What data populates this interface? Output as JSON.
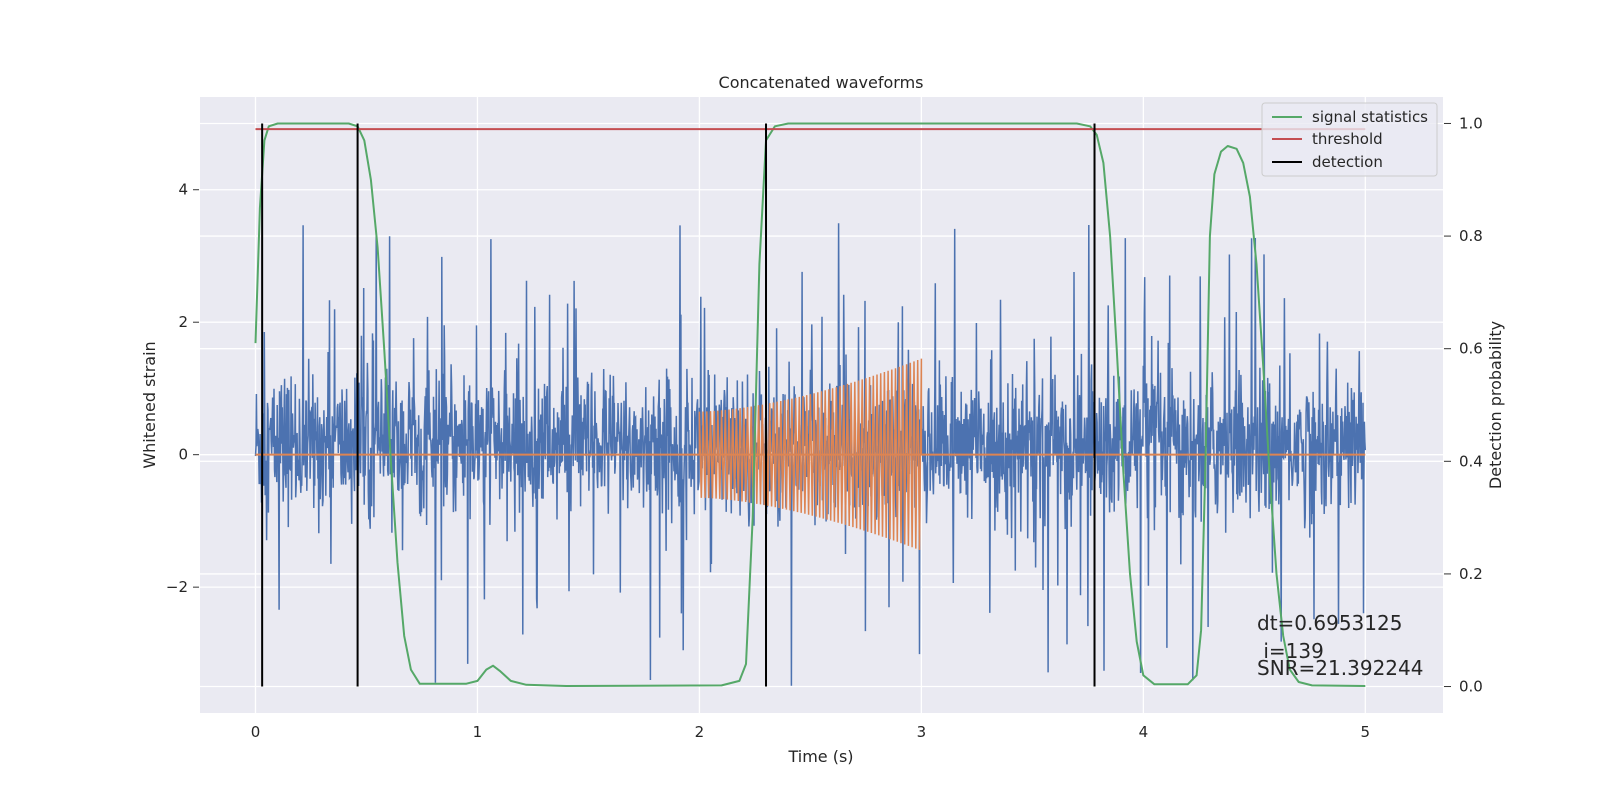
{
  "chart_data": {
    "type": "line",
    "title": "Concatenated waveforms",
    "xlabel": "Time (s)",
    "ylabel": "Whitened strain",
    "ylabel_right": "Detection probability",
    "xlim": [
      -0.25,
      5.35
    ],
    "ylim": [
      -3.9,
      5.4
    ],
    "ylim_right": [
      -0.047,
      1.047
    ],
    "xticks": [
      0,
      1,
      2,
      3,
      4,
      5
    ],
    "xtick_labels": [
      "0",
      "1",
      "2",
      "3",
      "4",
      "5"
    ],
    "yticks": [
      -2,
      0,
      2,
      4
    ],
    "ytick_labels": [
      "−2",
      "0",
      "2",
      "4"
    ],
    "yticks_right": [
      0.0,
      0.2,
      0.4,
      0.6,
      0.8,
      1.0
    ],
    "ytick_right_labels": [
      "0.0",
      "0.2",
      "0.4",
      "0.6",
      "0.8",
      "1.0"
    ],
    "grid": true,
    "legend_position": "top-right",
    "colors": {
      "background": "#eaeaf2",
      "noise": "#4c72b0",
      "injection": "#dd8452",
      "signal_statistics": "#55a868",
      "threshold": "#c44e52",
      "detection": "#000000",
      "grid": "#ffffff"
    },
    "series": [
      {
        "name": "signal statistics",
        "axis": "right",
        "x": [
          0,
          0.02,
          0.04,
          0.06,
          0.1,
          0.42,
          0.46,
          0.49,
          0.52,
          0.55,
          0.58,
          0.61,
          0.64,
          0.67,
          0.7,
          0.74,
          0.95,
          1.0,
          1.04,
          1.07,
          1.1,
          1.15,
          1.22,
          1.4,
          2.1,
          2.18,
          2.21,
          2.24,
          2.27,
          2.3,
          2.34,
          2.4,
          3.7,
          3.76,
          3.79,
          3.82,
          3.85,
          3.88,
          3.91,
          3.94,
          3.97,
          4.0,
          4.05,
          4.2,
          4.24,
          4.26,
          4.28,
          4.3,
          4.32,
          4.35,
          4.38,
          4.42,
          4.45,
          4.48,
          4.51,
          4.54,
          4.57,
          4.6,
          4.63,
          4.66,
          4.7,
          4.76,
          5.0
        ],
        "y": [
          0.61,
          0.85,
          0.97,
          0.995,
          1.0,
          1.0,
          0.995,
          0.97,
          0.9,
          0.78,
          0.6,
          0.4,
          0.22,
          0.09,
          0.03,
          0.005,
          0.005,
          0.01,
          0.03,
          0.037,
          0.028,
          0.01,
          0.003,
          0.001,
          0.002,
          0.01,
          0.04,
          0.3,
          0.75,
          0.97,
          0.995,
          1.0,
          1.0,
          0.995,
          0.98,
          0.93,
          0.8,
          0.6,
          0.38,
          0.2,
          0.08,
          0.02,
          0.004,
          0.004,
          0.02,
          0.1,
          0.4,
          0.8,
          0.91,
          0.95,
          0.96,
          0.955,
          0.93,
          0.87,
          0.75,
          0.57,
          0.37,
          0.2,
          0.09,
          0.03,
          0.008,
          0.002,
          0.001
        ]
      },
      {
        "name": "threshold",
        "axis": "right",
        "x": [
          0,
          5
        ],
        "y": [
          0.99,
          0.99
        ]
      },
      {
        "name": "detection",
        "axis": "right",
        "x": [
          0.03,
          0.46,
          2.3,
          3.78
        ],
        "y_range": [
          0,
          1
        ]
      }
    ],
    "waveforms": {
      "noise": {
        "axis": "left",
        "x_range": [
          0,
          5
        ],
        "typical_range": [
          -1.2,
          1.6
        ],
        "extremes": [
          -3.5,
          4.9
        ]
      },
      "injection": {
        "axis": "left",
        "x_range": [
          2.0,
          3.0
        ],
        "start_amplitude": 0.65,
        "end_amplitude": 1.45,
        "cycles": 60
      }
    },
    "annotations": [
      "dt=0.6953125",
      " i=139",
      "SNR=21.392244"
    ]
  }
}
